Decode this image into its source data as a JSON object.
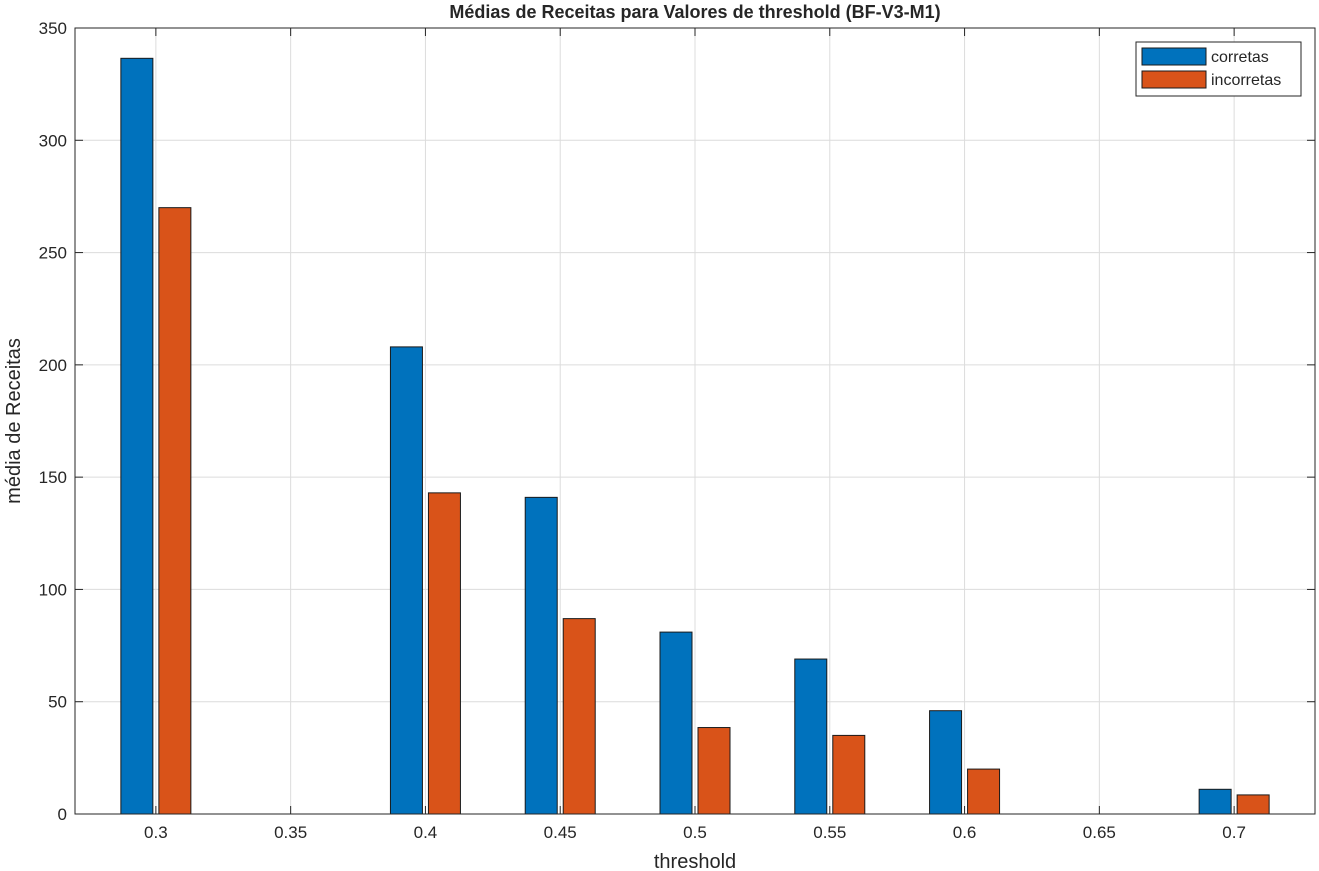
{
  "chart_data": {
    "type": "bar",
    "title": "Médias de Receitas para Valores de threshold (BF-V3-M1)",
    "xlabel": "threshold",
    "ylabel": "média de Receitas",
    "x": [
      0.3,
      0.4,
      0.45,
      0.5,
      0.55,
      0.6,
      0.7
    ],
    "xticks": [
      "0.3",
      "0.35",
      "0.4",
      "0.45",
      "0.5",
      "0.55",
      "0.6",
      "0.65",
      "0.7"
    ],
    "xlim": [
      0.27,
      0.73
    ],
    "ylim": [
      0,
      350
    ],
    "yticks": [
      "0",
      "50",
      "100",
      "150",
      "200",
      "250",
      "300",
      "350"
    ],
    "grid": true,
    "legend_position": "top-right",
    "series": [
      {
        "name": "corretas",
        "color": "#0072BD",
        "values": [
          336.5,
          208,
          141,
          81,
          69,
          46,
          11
        ]
      },
      {
        "name": "incorretas",
        "color": "#D95319",
        "values": [
          270,
          143,
          87,
          38.5,
          35,
          20,
          8.5
        ]
      }
    ]
  }
}
